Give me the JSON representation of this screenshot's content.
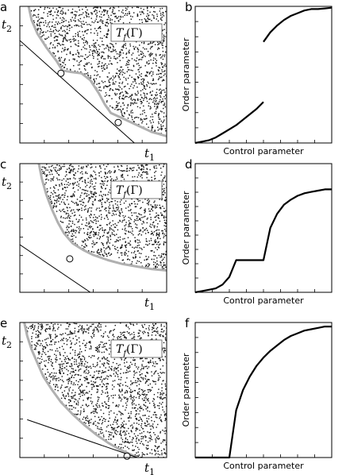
{
  "chart_data": [
    {
      "panel": "a",
      "type": "scatter",
      "xlabel": "t",
      "xlabel_sub": "1",
      "ylabel": "t",
      "ylabel_sub": "2",
      "region_label_main": "T",
      "region_label_sub": "f",
      "region_label_arg": "(Γ)",
      "xlim": [
        0,
        1
      ],
      "ylim": [
        0,
        1
      ],
      "boundary": [
        [
          0.06,
          1.0
        ],
        [
          0.08,
          0.9
        ],
        [
          0.12,
          0.8
        ],
        [
          0.18,
          0.7
        ],
        [
          0.25,
          0.6
        ],
        [
          0.29,
          0.53
        ],
        [
          0.35,
          0.52
        ],
        [
          0.42,
          0.51
        ],
        [
          0.48,
          0.46
        ],
        [
          0.54,
          0.36
        ],
        [
          0.58,
          0.28
        ],
        [
          0.62,
          0.22
        ],
        [
          0.68,
          0.19
        ],
        [
          0.74,
          0.16
        ],
        [
          0.82,
          0.12
        ],
        [
          0.9,
          0.08
        ],
        [
          1.0,
          0.05
        ]
      ],
      "tangent_line": [
        [
          0.0,
          0.75
        ],
        [
          0.78,
          0.0
        ]
      ],
      "tangent_points": [
        [
          0.28,
          0.51
        ],
        [
          0.67,
          0.15
        ]
      ]
    },
    {
      "panel": "b",
      "type": "line",
      "xlabel": "Control parameter",
      "ylabel": "Order parameter",
      "xlim": [
        0,
        1
      ],
      "ylim": [
        0,
        1
      ],
      "series": [
        {
          "x": [
            0.0,
            0.05,
            0.1,
            0.15,
            0.2,
            0.25,
            0.3,
            0.35,
            0.4,
            0.45,
            0.5
          ],
          "y": [
            0.0,
            0.01,
            0.02,
            0.04,
            0.07,
            0.1,
            0.13,
            0.17,
            0.21,
            0.25,
            0.3
          ]
        },
        {
          "x": [
            0.5,
            0.55,
            0.6,
            0.65,
            0.7,
            0.75,
            0.8,
            0.85,
            0.9,
            0.95,
            1.0
          ],
          "y": [
            0.74,
            0.81,
            0.86,
            0.9,
            0.93,
            0.95,
            0.97,
            0.98,
            0.98,
            0.985,
            0.99
          ]
        }
      ]
    },
    {
      "panel": "c",
      "type": "scatter",
      "xlabel": "t",
      "xlabel_sub": "1",
      "ylabel": "t",
      "ylabel_sub": "2",
      "region_label_main": "T",
      "region_label_sub": "f",
      "region_label_arg": "(Γ)",
      "xlim": [
        0,
        1
      ],
      "ylim": [
        0,
        1
      ],
      "boundary": [
        [
          0.13,
          1.0
        ],
        [
          0.15,
          0.88
        ],
        [
          0.18,
          0.76
        ],
        [
          0.22,
          0.64
        ],
        [
          0.26,
          0.54
        ],
        [
          0.3,
          0.46
        ],
        [
          0.36,
          0.38
        ],
        [
          0.43,
          0.33
        ],
        [
          0.5,
          0.29
        ],
        [
          0.6,
          0.25
        ],
        [
          0.7,
          0.22
        ],
        [
          0.8,
          0.2
        ],
        [
          0.9,
          0.18
        ],
        [
          1.0,
          0.17
        ]
      ],
      "tangent_line": [
        [
          0.0,
          0.37
        ],
        [
          0.48,
          0.0
        ]
      ],
      "tangent_points": [
        [
          0.34,
          0.26
        ]
      ]
    },
    {
      "panel": "d",
      "type": "line",
      "xlabel": "Control parameter",
      "ylabel": "Order parameter",
      "xlim": [
        0,
        1
      ],
      "ylim": [
        0,
        1
      ],
      "series": [
        {
          "x": [
            0.0,
            0.05,
            0.1,
            0.15,
            0.2,
            0.25,
            0.3,
            0.35,
            0.4,
            0.45,
            0.5,
            0.55,
            0.6,
            0.65,
            0.7,
            0.75,
            0.8,
            0.85,
            0.9,
            0.95,
            1.0
          ],
          "y": [
            0.0,
            0.01,
            0.02,
            0.03,
            0.06,
            0.12,
            0.25,
            0.25,
            0.25,
            0.25,
            0.25,
            0.5,
            0.61,
            0.68,
            0.72,
            0.75,
            0.77,
            0.78,
            0.79,
            0.8,
            0.8
          ]
        }
      ]
    },
    {
      "panel": "e",
      "type": "scatter",
      "xlabel": "t",
      "xlabel_sub": "1",
      "ylabel": "t",
      "ylabel_sub": "2",
      "region_label_main": "T",
      "region_label_sub": "f",
      "region_label_arg": "(Γ)",
      "xlim": [
        0,
        1
      ],
      "ylim": [
        0,
        1
      ],
      "boundary": [
        [
          0.03,
          1.0
        ],
        [
          0.05,
          0.9
        ],
        [
          0.08,
          0.8
        ],
        [
          0.12,
          0.7
        ],
        [
          0.16,
          0.6
        ],
        [
          0.22,
          0.5
        ],
        [
          0.28,
          0.41
        ],
        [
          0.36,
          0.32
        ],
        [
          0.44,
          0.24
        ],
        [
          0.52,
          0.17
        ],
        [
          0.6,
          0.11
        ],
        [
          0.68,
          0.06
        ],
        [
          0.74,
          0.03
        ],
        [
          0.8,
          0.0
        ]
      ],
      "tangent_line": [
        [
          0.05,
          0.28
        ],
        [
          0.8,
          0.0
        ]
      ],
      "tangent_points": [
        [
          0.73,
          0.01
        ]
      ]
    },
    {
      "panel": "f",
      "type": "line",
      "xlabel": "Control parameter",
      "ylabel": "Order parameter",
      "xlim": [
        0,
        1
      ],
      "ylim": [
        0,
        1
      ],
      "series": [
        {
          "x": [
            0.0,
            0.1,
            0.2,
            0.25,
            0.25,
            0.3,
            0.35,
            0.4,
            0.45,
            0.5,
            0.55,
            0.6,
            0.65,
            0.7,
            0.75,
            0.8,
            0.85,
            0.9,
            0.95,
            1.0
          ],
          "y": [
            0.0,
            0.0,
            0.0,
            0.0,
            0.0,
            0.35,
            0.5,
            0.6,
            0.68,
            0.74,
            0.79,
            0.83,
            0.87,
            0.9,
            0.92,
            0.94,
            0.95,
            0.96,
            0.97,
            0.97
          ]
        }
      ]
    }
  ]
}
